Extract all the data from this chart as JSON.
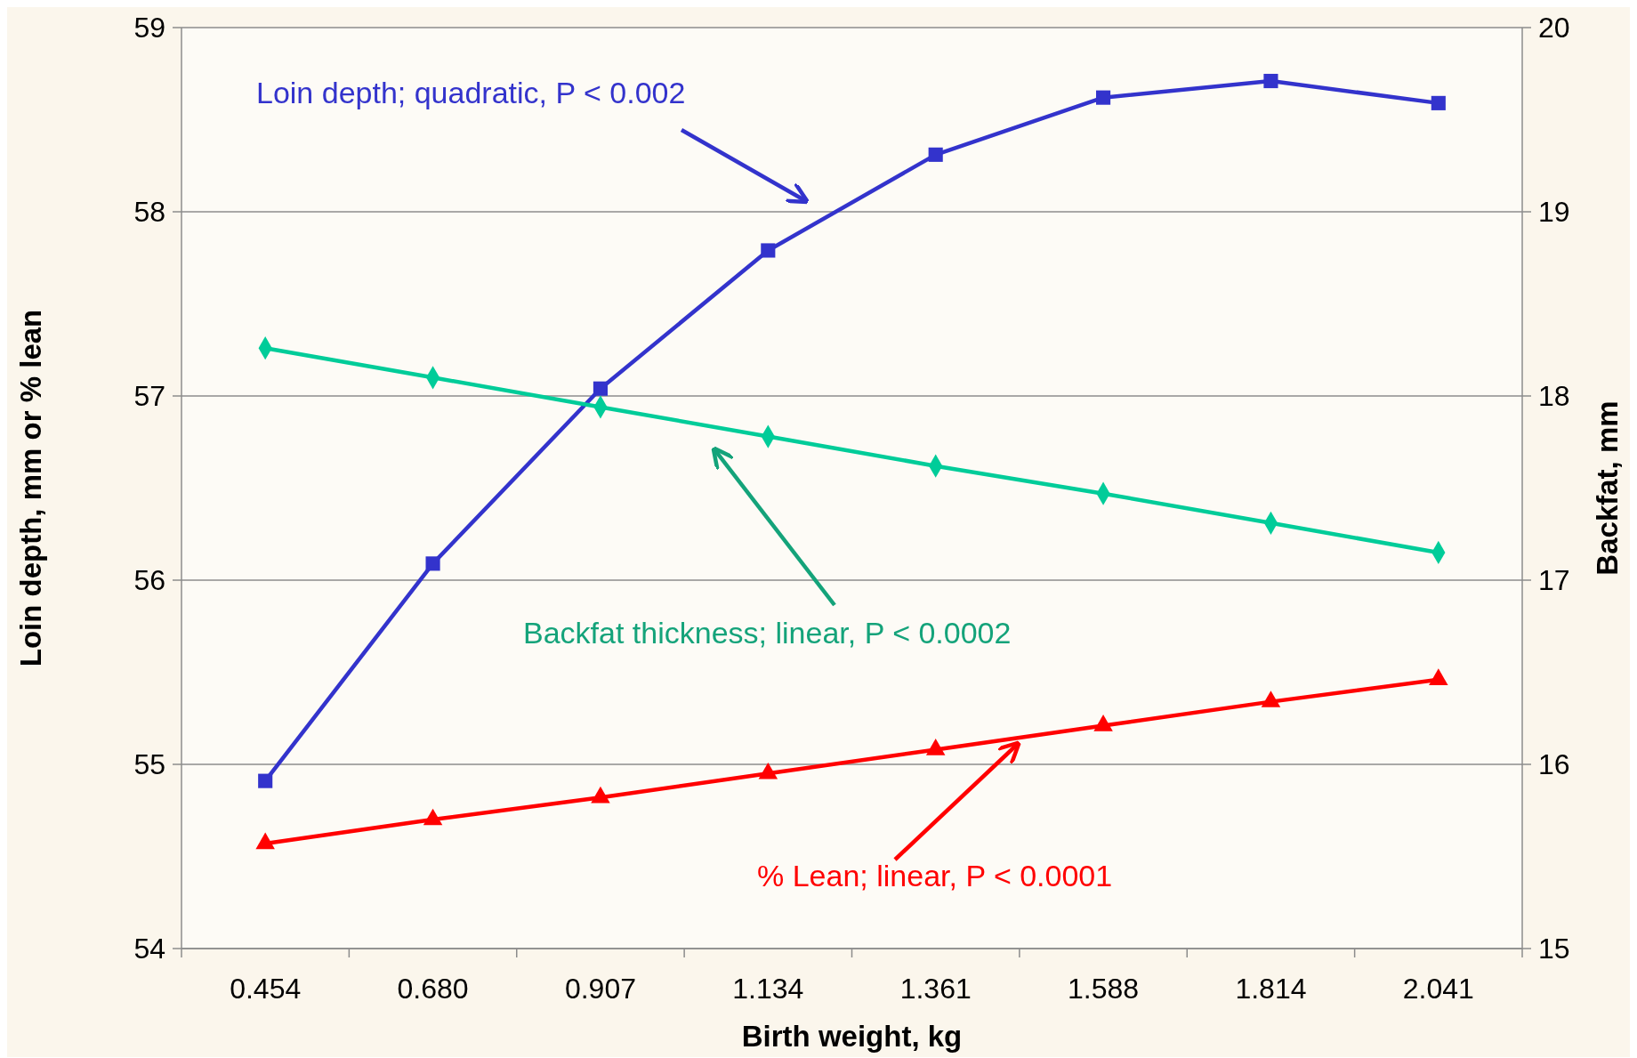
{
  "chart_data": {
    "type": "line",
    "xlabel": "Birth weight, kg",
    "ylabel": "Loin depth, mm or % lean",
    "y2label": "Backfat, mm",
    "categories": [
      "0.454",
      "0.680",
      "0.907",
      "1.134",
      "1.361",
      "1.588",
      "1.814",
      "2.041"
    ],
    "series": [
      {
        "color": "#3333cc",
        "marker": "square",
        "values": [
          54.91,
          56.09,
          57.04,
          57.79,
          58.31,
          58.62,
          58.71,
          58.59
        ]
      },
      {
        "color": "#00cc99",
        "marker": "diamond",
        "axis": "y2",
        "values": [
          18.26,
          18.1,
          17.94,
          17.78,
          17.62,
          17.47,
          17.31,
          17.15
        ]
      },
      {
        "color": "#ff0000",
        "marker": "triangle",
        "values": [
          54.57,
          54.7,
          54.82,
          54.95,
          55.08,
          55.21,
          55.34,
          55.46
        ]
      }
    ],
    "ylim": [
      54,
      59
    ],
    "yticks": [
      54,
      55,
      56,
      57,
      58,
      59
    ],
    "y2lim": [
      15,
      20
    ],
    "y2ticks": [
      15,
      16,
      17,
      18,
      19,
      20
    ],
    "grid": "y",
    "annotations": [
      "Loin depth; quadratic, P < 0.002",
      "Backfat thickness; linear, P < 0.0002",
      "% Lean; linear, P < 0.0001"
    ]
  }
}
